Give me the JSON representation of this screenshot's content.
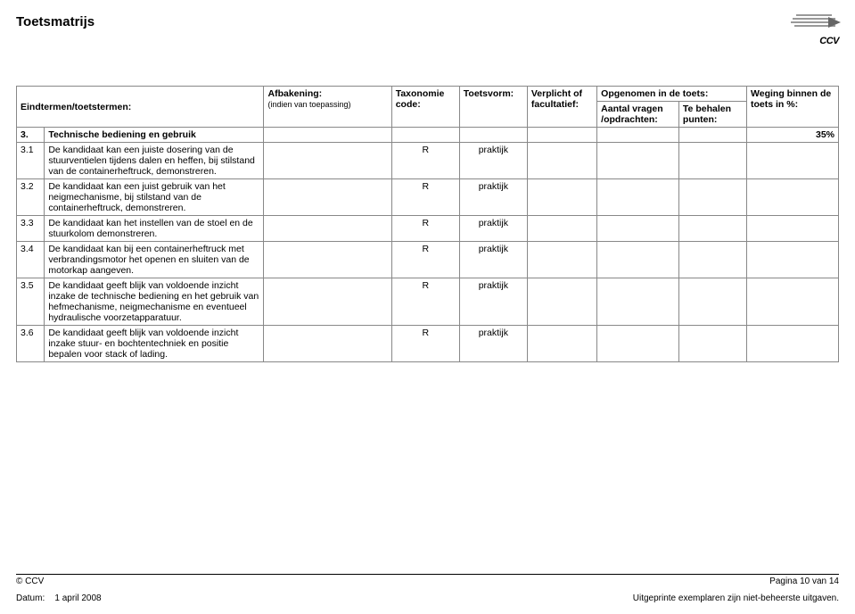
{
  "document": {
    "title": "Toetsmatrijs",
    "logo_text": "CCV"
  },
  "table": {
    "super_header": "Opgenomen in de toets:",
    "headers": {
      "eindtermen": "Eindtermen/toetstermen:",
      "afbakening": "Afbakening:",
      "afbakening_sub": "(indien van toepassing)",
      "taxonomie": "Taxonomie code:",
      "toetsvorm": "Toetsvorm:",
      "verplicht": "Verplicht of facultatief:",
      "aantal": "Aantal vragen /opdrachten:",
      "tebehalen": "Te behalen punten:",
      "weging": "Weging binnen de toets in %:"
    },
    "section": {
      "num": "3.",
      "title": "Technische bediening en gebruik",
      "weight": "35%"
    },
    "rows": [
      {
        "num": "3.1",
        "desc": "De kandidaat kan een juiste dosering van de stuurventielen tijdens dalen en heffen, bij stilstand van de containerheftruck, demonstreren.",
        "tax": "R",
        "toetsvorm": "praktijk"
      },
      {
        "num": "3.2",
        "desc": "De kandidaat kan een juist gebruik van het neigmechanisme, bij stilstand van de containerheftruck, demonstreren.",
        "tax": "R",
        "toetsvorm": "praktijk"
      },
      {
        "num": "3.3",
        "desc": "De kandidaat kan het instellen van de stoel en de stuurkolom demonstreren.",
        "tax": "R",
        "toetsvorm": "praktijk"
      },
      {
        "num": "3.4",
        "desc": "De kandidaat kan bij een containerheftruck met verbrandingsmotor het openen en sluiten van de motorkap aangeven.",
        "tax": "R",
        "toetsvorm": "praktijk"
      },
      {
        "num": "3.5",
        "desc": "De kandidaat geeft blijk van voldoende inzicht inzake de technische bediening en het gebruik van hefmechanisme, neigmechanisme en eventueel hydraulische voorzetapparatuur.",
        "tax": "R",
        "toetsvorm": "praktijk"
      },
      {
        "num": "3.6",
        "desc": "De kandidaat geeft blijk van voldoende inzicht inzake stuur- en bochtentechniek en positie bepalen voor stack of lading.",
        "tax": "R",
        "toetsvorm": "praktijk"
      }
    ]
  },
  "footer": {
    "copyright": "© CCV",
    "page": "Pagina 10 van 14",
    "date_label": "Datum:",
    "date_value": "1 april 2008",
    "disclaimer": "Uitgeprinte exemplaren zijn niet-beheerste uitgaven."
  },
  "colors": {
    "text": "#000000",
    "border": "#888888",
    "logo_bar": "#999999",
    "logo_arrow": "#666666",
    "background": "#ffffff"
  },
  "typography": {
    "title_fontsize_pt": 11,
    "table_fontsize_pt": 8,
    "footer_fontsize_pt": 7.5,
    "font_family": "Arial"
  }
}
